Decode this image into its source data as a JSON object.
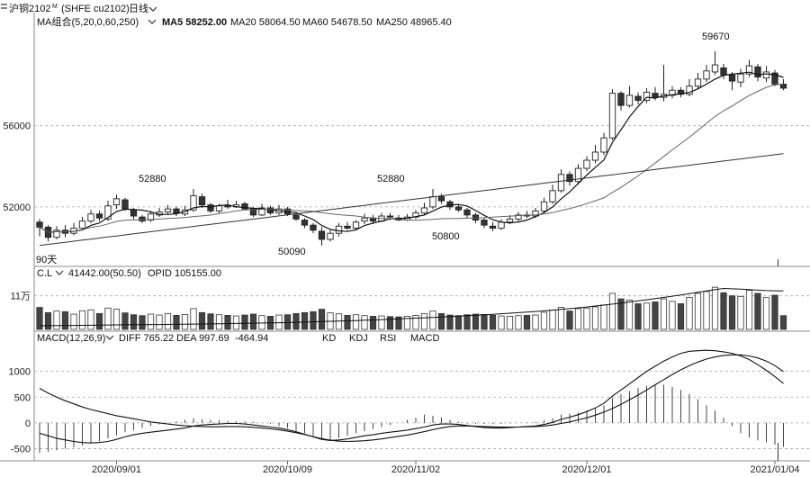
{
  "header": {
    "menu_icon": "menu-icon",
    "instrument": "沪铜2102",
    "instrument_sup": "M",
    "code": "(SHFE cu2102)",
    "period": "日线"
  },
  "ma_bar": {
    "label": "MA组合(5,20,0,60,250)",
    "ma5": "MA5 58252.00",
    "ma20": "MA20 58064.50",
    "ma60": "MA60 54678.50",
    "ma250": "MA250 48965.40"
  },
  "vol_bar": {
    "label": "C.L",
    "vol": "41442.00(50.50)",
    "opid": "OPID 105155.00"
  },
  "macd_bar": {
    "label": "MACD(12,26,9)",
    "diff": "DIFF 765.22",
    "dea": "DEA 997.69",
    "macd": "-464.94",
    "tabs": [
      "KD",
      "KDJ",
      "RSI",
      "MACD"
    ]
  },
  "annotations": {
    "high": "59670",
    "left_low": "90天",
    "p1": "52880",
    "p2": "52880",
    "p3": "50090",
    "p4": "50800"
  },
  "chart_data": [
    {
      "type": "candlestick",
      "title": "",
      "y_ticks": [
        "56000",
        "52000"
      ],
      "y_tick_values": [
        56000,
        52000
      ],
      "ylim": [
        49200,
        60600
      ],
      "x_tick_labels": [
        "2020/09/01",
        "2020/10/09",
        "2020/11/02",
        "2020/12/01",
        "2021/01/04"
      ],
      "x_tick_index": [
        9,
        29,
        44,
        64,
        86
      ],
      "candles": [
        [
          51250,
          51000,
          51400,
          50550
        ],
        [
          51000,
          50500,
          51100,
          50300
        ],
        [
          50500,
          50850,
          51050,
          50400
        ],
        [
          50850,
          50700,
          51100,
          50500
        ],
        [
          50700,
          50950,
          51200,
          50600
        ],
        [
          50950,
          51300,
          51500,
          50850
        ],
        [
          51300,
          51650,
          51850,
          51200
        ],
        [
          51650,
          51450,
          51800,
          51300
        ],
        [
          51400,
          52050,
          52300,
          51300
        ],
        [
          52100,
          52400,
          52600,
          51900
        ],
        [
          52350,
          51900,
          52450,
          51800
        ],
        [
          51850,
          51550,
          51950,
          51400
        ],
        [
          51500,
          51300,
          51600,
          51200
        ],
        [
          51350,
          51650,
          51800,
          51250
        ],
        [
          51600,
          51750,
          51950,
          51500
        ],
        [
          51750,
          51900,
          52100,
          51650
        ],
        [
          51900,
          51700,
          52000,
          51550
        ],
        [
          51650,
          51850,
          52050,
          51550
        ],
        [
          51850,
          52550,
          52880,
          51750
        ],
        [
          52500,
          52100,
          52650,
          51950
        ],
        [
          52100,
          51800,
          52200,
          51700
        ],
        [
          51800,
          52050,
          52150,
          51700
        ],
        [
          52050,
          52000,
          52350,
          51900
        ],
        [
          52000,
          52100,
          52300,
          51950
        ],
        [
          52150,
          51900,
          52250,
          51850
        ],
        [
          51900,
          51600,
          52000,
          51500
        ],
        [
          51600,
          51950,
          52150,
          51550
        ],
        [
          51950,
          51700,
          52050,
          51600
        ],
        [
          51700,
          51900,
          52100,
          51600
        ],
        [
          51900,
          51650,
          52000,
          51550
        ],
        [
          51600,
          51400,
          51700,
          51300
        ],
        [
          51350,
          51100,
          51450,
          50950
        ],
        [
          51100,
          50850,
          51200,
          50700
        ],
        [
          50800,
          50400,
          51000,
          50090
        ],
        [
          50400,
          50700,
          50850,
          50300
        ],
        [
          50700,
          51050,
          51200,
          50550
        ],
        [
          51050,
          50950,
          51250,
          50850
        ],
        [
          50950,
          51250,
          51350,
          50850
        ],
        [
          51300,
          51450,
          51650,
          51150
        ],
        [
          51450,
          51300,
          51600,
          51150
        ],
        [
          51300,
          51550,
          51700,
          51250
        ],
        [
          51550,
          51500,
          51700,
          51350
        ],
        [
          51450,
          51350,
          51600,
          51300
        ],
        [
          51350,
          51500,
          51650,
          51300
        ],
        [
          51500,
          51700,
          51850,
          51400
        ],
        [
          51700,
          51950,
          52200,
          51600
        ],
        [
          52000,
          52500,
          52880,
          51900
        ],
        [
          52500,
          52300,
          52650,
          52150
        ],
        [
          52250,
          52000,
          52350,
          51850
        ],
        [
          52000,
          51850,
          52150,
          51750
        ],
        [
          51850,
          51600,
          51950,
          51450
        ],
        [
          51600,
          51350,
          51700,
          51200
        ],
        [
          51350,
          51100,
          51450,
          50950
        ],
        [
          51050,
          50950,
          51250,
          50800
        ],
        [
          50950,
          51250,
          51400,
          50850
        ],
        [
          51250,
          51400,
          51600,
          51150
        ],
        [
          51400,
          51600,
          51750,
          51300
        ],
        [
          51600,
          51550,
          51800,
          51450
        ],
        [
          51550,
          51800,
          51950,
          51450
        ],
        [
          51800,
          52250,
          52450,
          51750
        ],
        [
          52250,
          52800,
          53100,
          52150
        ],
        [
          52800,
          53600,
          53850,
          52700
        ],
        [
          53600,
          53250,
          53750,
          53050
        ],
        [
          53250,
          53900,
          54100,
          53100
        ],
        [
          53900,
          54300,
          54500,
          53750
        ],
        [
          54300,
          54700,
          55050,
          54150
        ],
        [
          54700,
          55400,
          55650,
          54550
        ],
        [
          55400,
          57600,
          57800,
          55300
        ],
        [
          57600,
          57000,
          57700,
          56750
        ],
        [
          57000,
          57500,
          57950,
          56900
        ],
        [
          57450,
          57250,
          57650,
          57050
        ],
        [
          57250,
          57650,
          57850,
          57100
        ],
        [
          57600,
          57400,
          57900,
          57250
        ],
        [
          57400,
          57550,
          59000,
          57200
        ],
        [
          57500,
          57750,
          57950,
          57350
        ],
        [
          57750,
          57550,
          57900,
          57400
        ],
        [
          57550,
          57950,
          58300,
          57450
        ],
        [
          57950,
          58300,
          58600,
          57800
        ],
        [
          58300,
          58700,
          59000,
          58150
        ],
        [
          58650,
          59000,
          59670,
          58500
        ],
        [
          58850,
          58500,
          59050,
          58300
        ],
        [
          58500,
          58200,
          58650,
          57750
        ],
        [
          58150,
          58550,
          58800,
          57900
        ],
        [
          58550,
          58950,
          59250,
          58400
        ],
        [
          58900,
          58400,
          59050,
          58200
        ],
        [
          58350,
          58650,
          58950,
          58150
        ],
        [
          58600,
          58050,
          58750,
          57950
        ],
        [
          58050,
          57850,
          58300,
          57750
        ]
      ],
      "series": [
        {
          "name": "MA5"
        },
        {
          "name": "MA20"
        },
        {
          "name": "MA60"
        },
        {
          "name": "MA250"
        }
      ]
    },
    {
      "type": "bar",
      "title": "",
      "y_ticks": [
        "11万"
      ],
      "y_tick_values": [
        110000
      ],
      "ylim": [
        0,
        165000
      ],
      "volume": [
        72000,
        55000,
        60000,
        58000,
        50000,
        61000,
        64000,
        52000,
        70000,
        66000,
        54000,
        48000,
        45000,
        50000,
        47000,
        52000,
        46000,
        49000,
        68000,
        55000,
        51000,
        48000,
        46000,
        44000,
        47000,
        50000,
        45000,
        43000,
        47000,
        48000,
        52000,
        55000,
        58000,
        66000,
        54000,
        51000,
        46000,
        48000,
        45000,
        43000,
        44000,
        42000,
        41000,
        43000,
        46000,
        51000,
        60000,
        52000,
        47000,
        45000,
        48000,
        50000,
        49000,
        46000,
        44000,
        43000,
        45000,
        46000,
        47000,
        56000,
        63000,
        72000,
        60000,
        68000,
        70000,
        74000,
        80000,
        118000,
        100000,
        96000,
        84000,
        86000,
        90000,
        100000,
        92000,
        84000,
        105000,
        118000,
        124000,
        138000,
        120000,
        110000,
        108000,
        128000,
        118000,
        104000,
        112000,
        45000
      ],
      "open_interest": [
        12000,
        12200,
        12500,
        12700,
        13000,
        13300,
        13700,
        14000,
        14300,
        14800,
        15000,
        15200,
        15500,
        15800,
        16000,
        16300,
        16700,
        17000,
        17300,
        17700,
        18000,
        18400,
        18800,
        19300,
        19800,
        20200,
        20800,
        21300,
        21900,
        22500,
        23200,
        24000,
        24800,
        25600,
        26400,
        27300,
        28200,
        29000,
        30000,
        31000,
        32000,
        33200,
        34400,
        35600,
        36800,
        38000,
        39300,
        40600,
        42000,
        43500,
        45000,
        46500,
        48000,
        49600,
        51300,
        53000,
        54800,
        56700,
        58600,
        60700,
        63000,
        65500,
        68000,
        70700,
        73500,
        76500,
        79500,
        82800,
        86200,
        89700,
        93300,
        97000,
        100800,
        104700,
        108700,
        112800,
        117000,
        121300,
        125700,
        130000,
        134000,
        133000,
        132000,
        130500,
        128500,
        127000,
        126500,
        126000
      ]
    },
    {
      "type": "bar",
      "title": "",
      "y_ticks": [
        "1000",
        "500",
        "0",
        "-500"
      ],
      "y_tick_values": [
        1000,
        500,
        0,
        -500
      ],
      "ylim": [
        -700,
        1500
      ],
      "series": [
        {
          "name": "DIFF",
          "values": [
            -200,
            -250,
            -300,
            -330,
            -360,
            -380,
            -390,
            -380,
            -360,
            -320,
            -270,
            -230,
            -200,
            -180,
            -160,
            -140,
            -120,
            -100,
            -60,
            -40,
            -30,
            -20,
            -10,
            -10,
            -20,
            -40,
            -60,
            -80,
            -100,
            -130,
            -170,
            -220,
            -270,
            -320,
            -340,
            -330,
            -310,
            -280,
            -250,
            -230,
            -200,
            -180,
            -160,
            -140,
            -110,
            -80,
            -40,
            -20,
            -20,
            -30,
            -50,
            -70,
            -90,
            -100,
            -100,
            -90,
            -80,
            -70,
            -60,
            -30,
            10,
            70,
            110,
            160,
            220,
            290,
            380,
            520,
            640,
            760,
            880,
            1000,
            1100,
            1200,
            1280,
            1350,
            1390,
            1400,
            1410,
            1400,
            1380,
            1350,
            1300,
            1230,
            1130,
            1020,
            900,
            765
          ]
        },
        {
          "name": "DEA",
          "values": [
            670,
            580,
            500,
            430,
            370,
            310,
            260,
            220,
            180,
            140,
            110,
            80,
            50,
            20,
            0,
            -20,
            -40,
            -55,
            -65,
            -70,
            -75,
            -75,
            -70,
            -70,
            -75,
            -85,
            -100,
            -115,
            -135,
            -160,
            -190,
            -225,
            -265,
            -305,
            -335,
            -355,
            -360,
            -355,
            -345,
            -330,
            -310,
            -285,
            -260,
            -235,
            -205,
            -170,
            -130,
            -95,
            -70,
            -60,
            -60,
            -65,
            -70,
            -75,
            -80,
            -80,
            -80,
            -75,
            -70,
            -60,
            -40,
            -10,
            20,
            60,
            100,
            150,
            210,
            280,
            360,
            450,
            540,
            640,
            740,
            840,
            940,
            1030,
            1110,
            1180,
            1240,
            1280,
            1310,
            1320,
            1320,
            1300,
            1260,
            1200,
            1110,
            998
          ]
        },
        {
          "name": "MACD",
          "values": [
            -580,
            -560,
            -530,
            -500,
            -470,
            -440,
            -400,
            -360,
            -300,
            -240,
            -180,
            -140,
            -100,
            -60,
            -30,
            0,
            30,
            60,
            90,
            70,
            60,
            50,
            40,
            30,
            30,
            20,
            0,
            -20,
            -60,
            -100,
            -150,
            -200,
            -260,
            -320,
            -330,
            -290,
            -250,
            -200,
            -160,
            -120,
            -80,
            -40,
            0,
            60,
            100,
            160,
            140,
            100,
            60,
            20,
            -10,
            -20,
            -20,
            -20,
            -20,
            -10,
            0,
            10,
            20,
            50,
            90,
            160,
            180,
            200,
            240,
            280,
            340,
            480,
            560,
            620,
            680,
            720,
            740,
            740,
            700,
            640,
            560,
            460,
            340,
            240,
            100,
            -60,
            -200,
            -280,
            -340,
            -380,
            -420,
            -465
          ]
        }
      ]
    }
  ]
}
